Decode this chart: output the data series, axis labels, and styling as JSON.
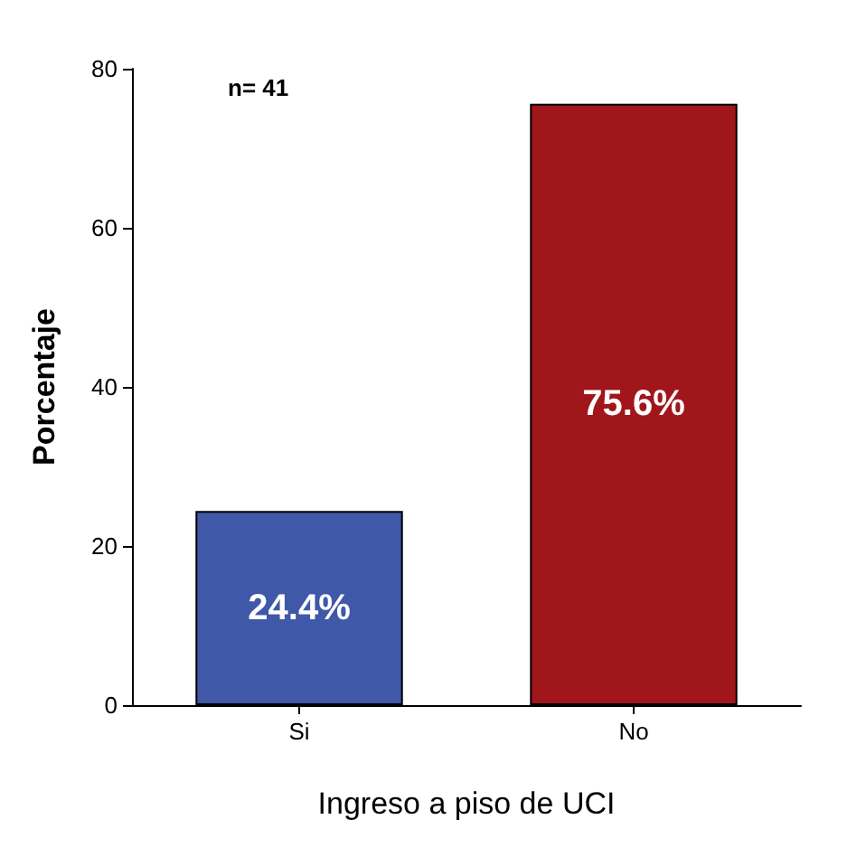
{
  "chart_data": {
    "type": "bar",
    "categories": [
      "Si",
      "No"
    ],
    "values": [
      24.4,
      75.6
    ],
    "colors": [
      "#3f58a8",
      "#a0161b"
    ],
    "value_labels": [
      "24.4%",
      "75.6%"
    ],
    "xlabel": "Ingreso a piso de UCI",
    "ylabel": "Porcentaje",
    "ylim": [
      0,
      80
    ],
    "yticks": [
      0,
      20,
      40,
      60,
      80
    ],
    "grid": false,
    "annotations": [
      "n= 41"
    ]
  }
}
